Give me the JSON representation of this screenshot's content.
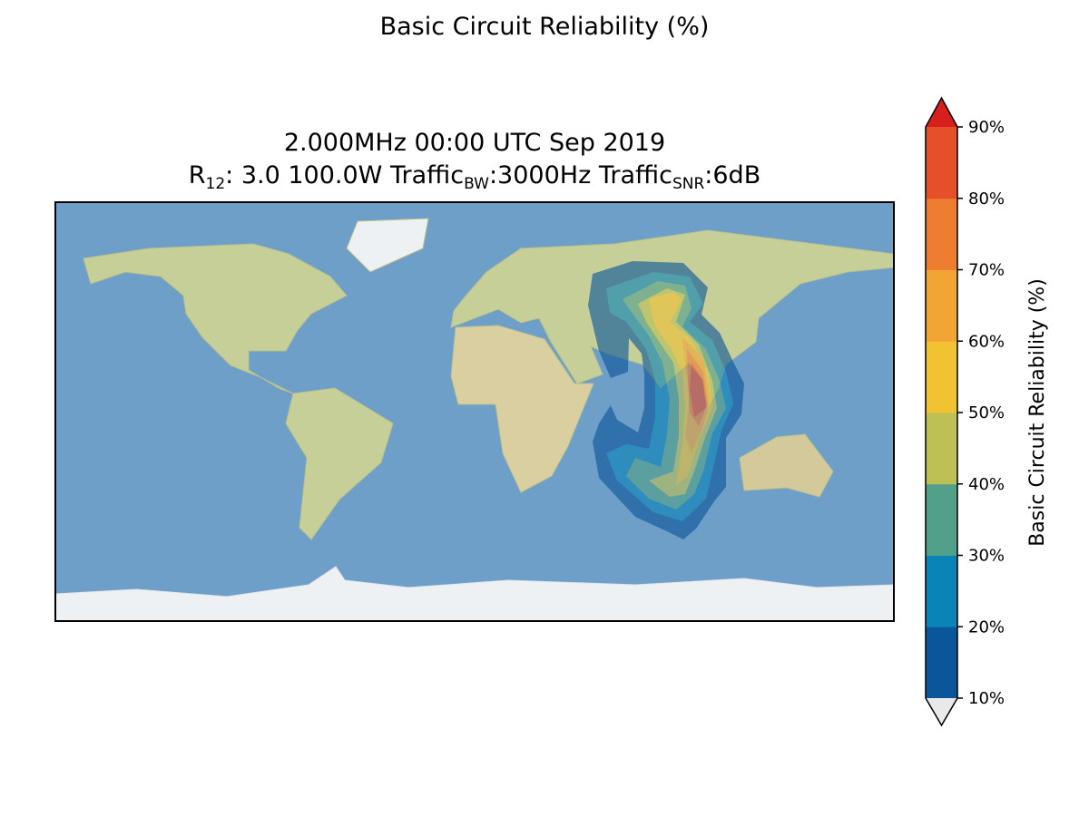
{
  "figure": {
    "suptitle": "Basic Circuit Reliability (%)",
    "title_line1": "2.000MHz 00:00 UTC Sep 2019",
    "title_line2": {
      "r_label": "R",
      "r_sub": "12",
      "r_value": ": 3.0 100.0W Traffic",
      "bw_sub": "BW",
      "bw_value": ":3000Hz Traffic",
      "snr_sub": "SNR",
      "snr_value": ":6dB"
    }
  },
  "colorbar": {
    "label": "Basic Circuit Reliability (%)",
    "ticks": [
      "10%",
      "20%",
      "30%",
      "40%",
      "50%",
      "60%",
      "70%",
      "80%",
      "90%"
    ],
    "colors": [
      "#0b559b",
      "#0a83b7",
      "#52a08a",
      "#bcc055",
      "#f1c232",
      "#f2a535",
      "#ef7d31",
      "#e5502a"
    ],
    "over_color": "#d7201e",
    "under_color": "#e9e9e9"
  },
  "chart_data": {
    "type": "contour",
    "title": "Basic Circuit Reliability (%)",
    "levels": [
      10,
      20,
      30,
      40,
      50,
      60,
      70,
      80,
      90
    ],
    "units": "%",
    "peak_region": "Indian subcontinent / Bay of Bengal, >80%"
  }
}
